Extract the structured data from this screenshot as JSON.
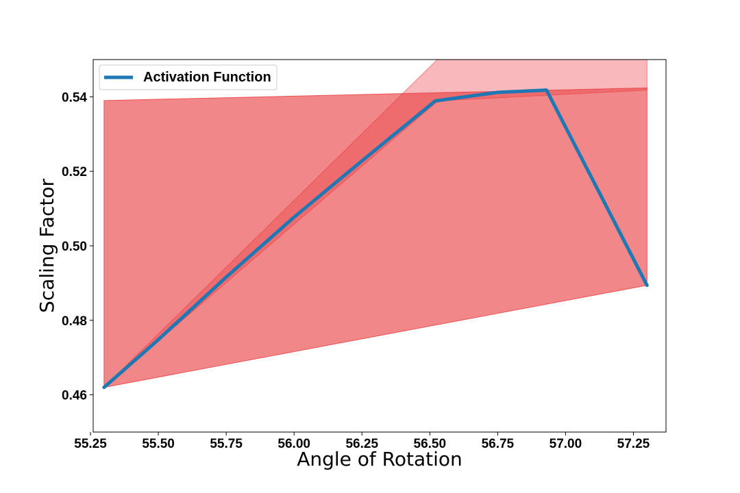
{
  "chart_data": {
    "type": "area",
    "xlabel": "Angle of Rotation",
    "ylabel": "Scaling Factor",
    "xlim": [
      55.26,
      57.37
    ],
    "ylim": [
      0.45,
      0.55
    ],
    "x_ticks": [
      55.25,
      55.5,
      55.75,
      56.0,
      56.25,
      56.5,
      56.75,
      57.0,
      57.25
    ],
    "x_tick_labels": [
      "55.25",
      "55.50",
      "55.75",
      "56.00",
      "56.25",
      "56.50",
      "56.75",
      "57.00",
      "57.25"
    ],
    "y_ticks": [
      0.46,
      0.48,
      0.5,
      0.52,
      0.54
    ],
    "y_tick_labels": [
      "0.46",
      "0.48",
      "0.50",
      "0.52",
      "0.54"
    ],
    "grid": false,
    "legend_placement": "top-left",
    "series": [
      {
        "name": "Activation Function",
        "color": "#1f77b4",
        "x": [
          55.3,
          55.5,
          55.75,
          56.0,
          56.25,
          56.52,
          56.75,
          56.93,
          57.3
        ],
        "y": [
          0.462,
          0.4748,
          0.4916,
          0.5077,
          0.5228,
          0.5389,
          0.5412,
          0.5418,
          0.4894
        ]
      }
    ],
    "bands": [
      {
        "color": "#e8373b",
        "opacity": 0.35,
        "x": [
          55.3,
          56.53,
          57.3
        ],
        "lower": [
          0.462,
          0.5389,
          0.5418
        ],
        "upper": [
          0.462,
          0.5502,
          0.5502
        ]
      },
      {
        "color": "#e8373b",
        "opacity": 0.6,
        "x": [
          55.3,
          57.3
        ],
        "lower": [
          0.462,
          0.4894
        ],
        "upper": [
          0.539,
          0.5424
        ]
      }
    ]
  }
}
